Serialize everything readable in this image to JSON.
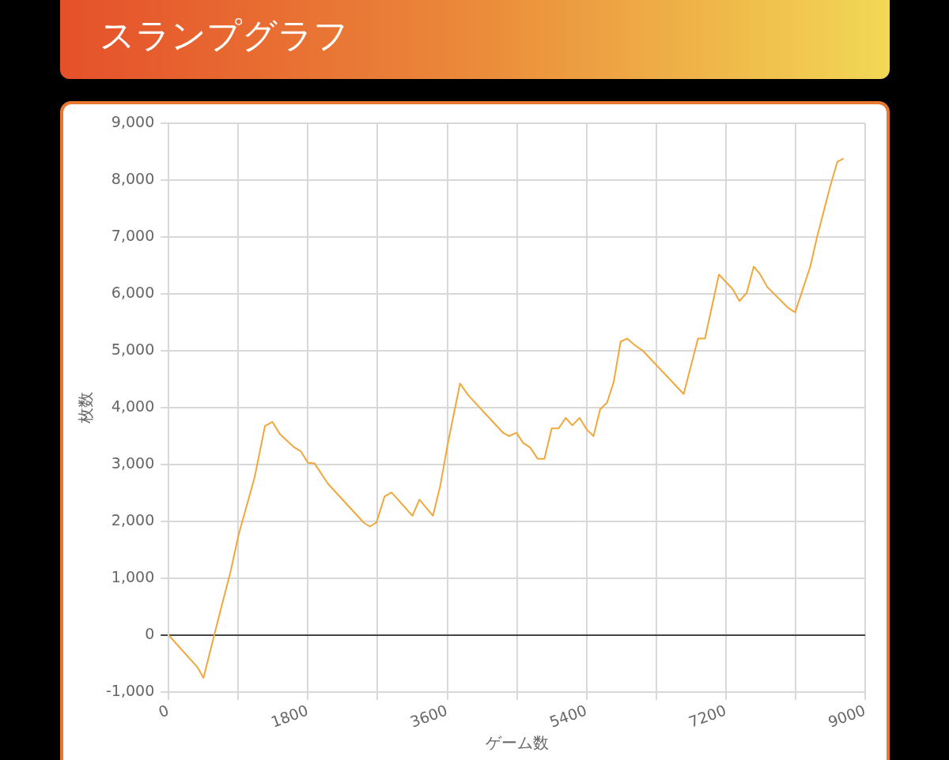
{
  "chart_data": {
    "type": "line",
    "title": "スランプグラフ",
    "xlabel": "ゲーム数",
    "ylabel": "枚数",
    "xlim": [
      0,
      9000
    ],
    "xticks": [
      0,
      {
        "value": 900,
        "label": null
      },
      1800,
      {
        "value": 2700,
        "label": null
      },
      3600,
      {
        "value": 4500,
        "label": null
      },
      5400,
      {
        "value": 6300,
        "label": null
      },
      7200,
      {
        "value": 8100,
        "label": null
      },
      9000
    ],
    "ylim": [
      -1000,
      9000
    ],
    "yticks": [
      {
        "value": -1000,
        "label": "-1,000"
      },
      0,
      {
        "value": 1000,
        "label": "1,000"
      },
      {
        "value": 2000,
        "label": "2,000"
      },
      {
        "value": 3000,
        "label": "3,000"
      },
      {
        "value": 4000,
        "label": "4,000"
      },
      {
        "value": 5000,
        "label": "5,000"
      },
      {
        "value": 6000,
        "label": "6,000"
      },
      {
        "value": 7000,
        "label": "7,000"
      },
      {
        "value": 8000,
        "label": "8,000"
      },
      {
        "value": 9000,
        "label": "9,000"
      }
    ],
    "grid": true,
    "legend": false,
    "marker": "none",
    "line_style": "solid",
    "series": [
      {
        "color": "#f0a83c",
        "x": [
          0,
          370,
          450,
          650,
          800,
          905,
          1110,
          1245,
          1340,
          1440,
          1625,
          1710,
          1800,
          1885,
          2060,
          2520,
          2600,
          2685,
          2790,
          2880,
          3150,
          3240,
          3415,
          3510,
          3610,
          3765,
          3870,
          4320,
          4400,
          4495,
          4580,
          4670,
          4770,
          4855,
          4950,
          5040,
          5130,
          5215,
          5310,
          5400,
          5490,
          5575,
          5665,
          5750,
          5840,
          5925,
          6030,
          6120,
          6655,
          6840,
          6930,
          7110,
          7290,
          7375,
          7470,
          7560,
          7640,
          7735,
          8000,
          8095,
          8290,
          8380,
          8550,
          8640,
          8720
        ],
        "values": [
          0,
          -560,
          -750,
          330,
          1120,
          1770,
          2770,
          3680,
          3750,
          3530,
          3300,
          3230,
          3030,
          3020,
          2660,
          1980,
          1910,
          1980,
          2440,
          2510,
          2100,
          2385,
          2100,
          2630,
          3390,
          4425,
          4220,
          3560,
          3500,
          3560,
          3380,
          3300,
          3100,
          3100,
          3635,
          3635,
          3820,
          3690,
          3820,
          3620,
          3500,
          3970,
          4090,
          4450,
          5160,
          5215,
          5090,
          5010,
          4240,
          5215,
          5215,
          6340,
          6080,
          5875,
          6020,
          6480,
          6350,
          6120,
          5760,
          5675,
          6480,
          7010,
          7900,
          8320,
          8380
        ]
      }
    ]
  }
}
